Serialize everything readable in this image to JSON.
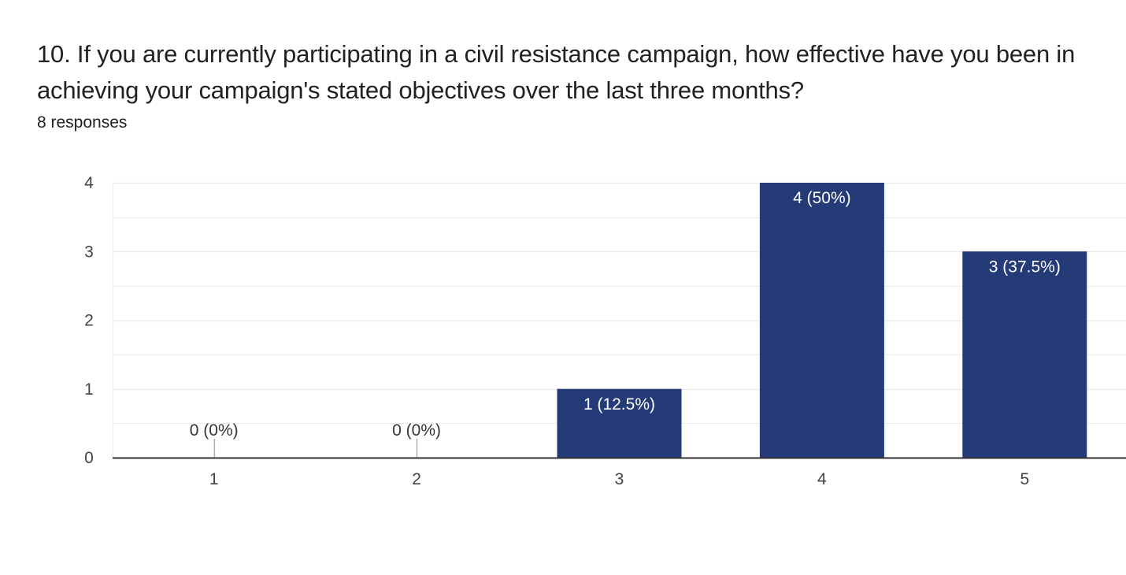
{
  "question": {
    "title": "10. If you are currently participating in a civil resistance campaign, how effective have you been in achieving your campaign's stated objectives over the last three months?",
    "responses": "8 responses"
  },
  "colors": {
    "bar": "#253b78",
    "grid": "#ebebeb",
    "baseline": "#333333",
    "label_inside": "#ffffff",
    "label_outside": "#333333"
  },
  "chart_data": {
    "type": "bar",
    "categories": [
      "1",
      "2",
      "3",
      "4",
      "5"
    ],
    "values": [
      0,
      0,
      1,
      4,
      3
    ],
    "data_labels": [
      "0 (0%)",
      "0 (0%)",
      "1 (12.5%)",
      "4 (50%)",
      "3 (37.5%)"
    ],
    "ylim": [
      0,
      4
    ],
    "yticks": [
      "0",
      "1",
      "2",
      "3",
      "4"
    ],
    "grid": true,
    "title": "",
    "xlabel": "",
    "ylabel": ""
  }
}
